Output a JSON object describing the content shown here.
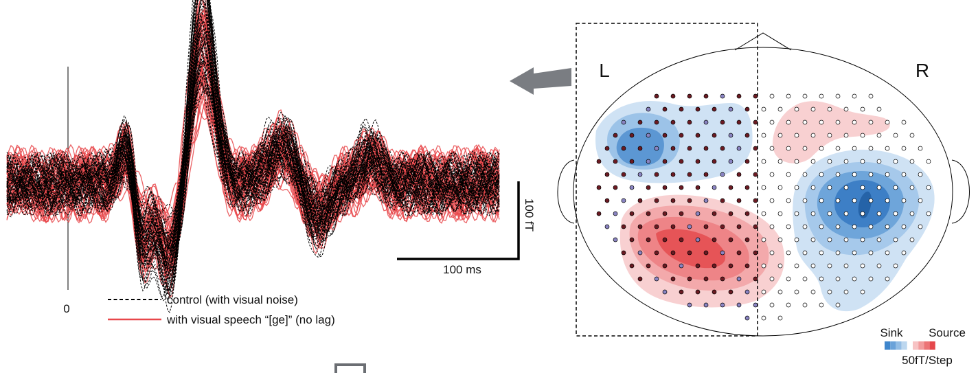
{
  "waveforms": {
    "scale_bar": {
      "amplitude_label": "100 fT",
      "time_label": "100 ms"
    },
    "onset_label": "0",
    "legend": [
      {
        "label": "control (with visual noise)",
        "style": "dashed",
        "color": "#000000"
      },
      {
        "label": "with visual speech “[ge]”  (no lag)",
        "style": "solid",
        "color": "#e8474a"
      }
    ]
  },
  "topomap": {
    "left_label": "L",
    "right_label": "R",
    "colorbar": {
      "sink_label": "Sink",
      "source_label": "Source",
      "step_label": "50fT/Step",
      "sink_colors": [
        "#3f86cc",
        "#6aa2d9",
        "#93bde5",
        "#bcd7ef"
      ],
      "source_colors": [
        "#f7c3c4",
        "#f29c9d",
        "#ec7476",
        "#e5474b"
      ]
    },
    "selected_sensor_color": "#6b1a22",
    "selected_sensor_alt_color": "#8a84c2",
    "unselected_sensor_color": "#ffffff"
  }
}
